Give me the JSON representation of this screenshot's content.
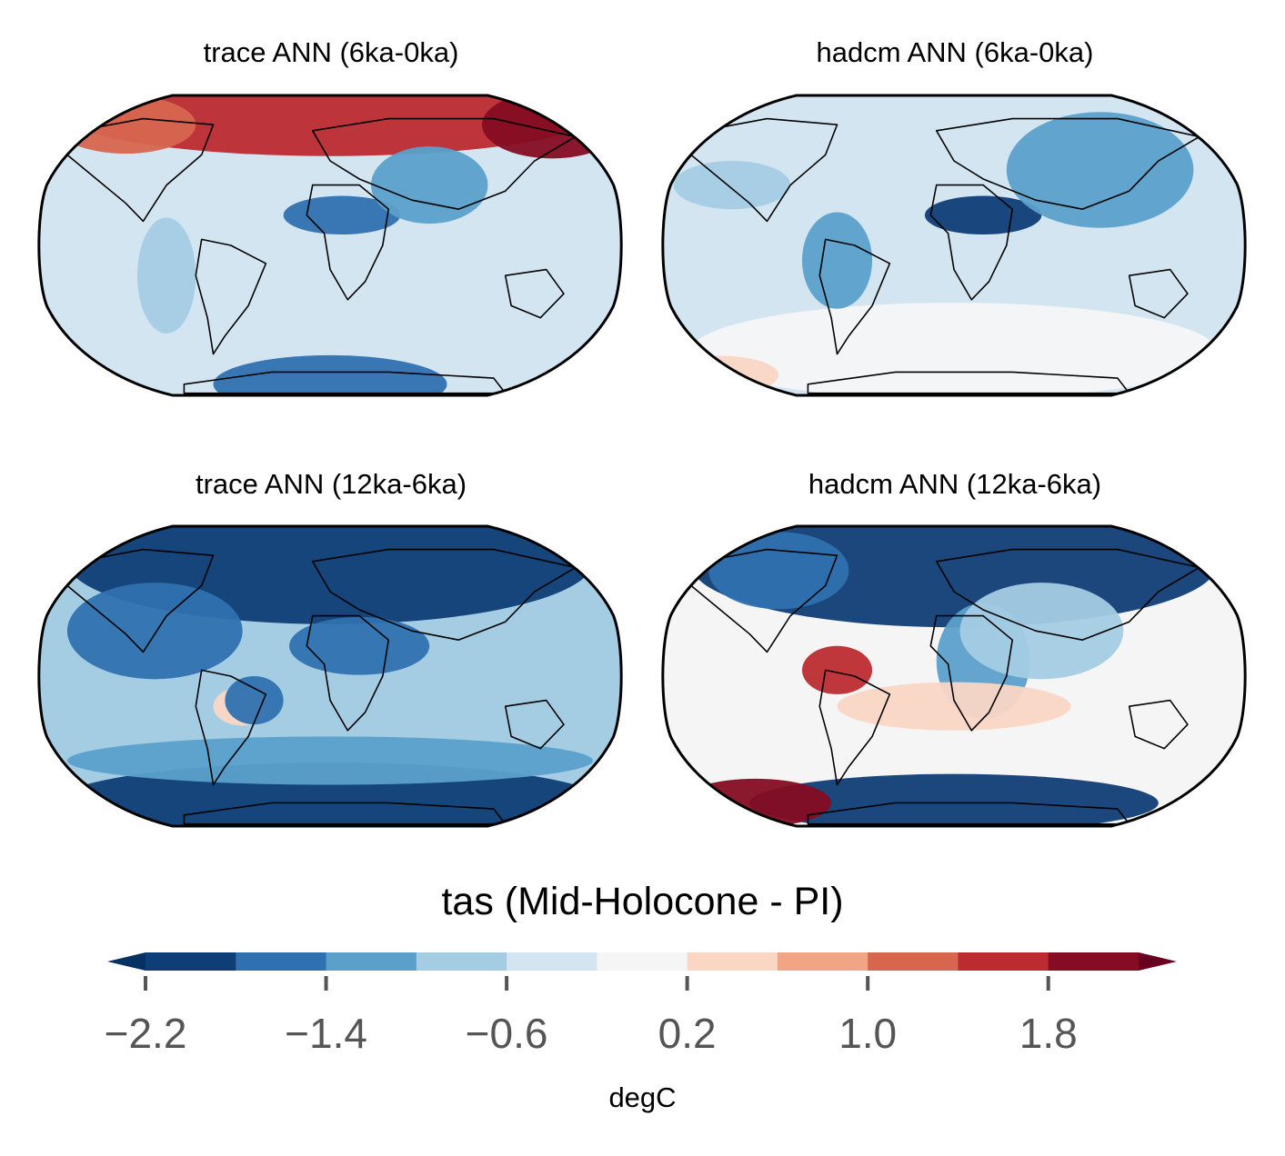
{
  "panels": [
    {
      "title": "trace ANN (6ka-0ka)"
    },
    {
      "title": "hadcm ANN (6ka-0ka)"
    },
    {
      "title": "trace ANN (12ka-6ka)"
    },
    {
      "title": "hadcm ANN (12ka-6ka)"
    }
  ],
  "colorbar": {
    "title": "tas (Mid-Holocone - PI)",
    "unit": "degC",
    "ticks": [
      "−2.2",
      "−1.4",
      "−0.6",
      "0.2",
      "1.0",
      "1.8"
    ],
    "levels": [
      -2.2,
      -1.8,
      -1.4,
      -1.0,
      -0.6,
      -0.2,
      0.2,
      0.6,
      1.0,
      1.4,
      1.8,
      2.2
    ],
    "colors": [
      "#0f3d75",
      "#2f71b0",
      "#5ba0cb",
      "#a4cce3",
      "#d3e5f1",
      "#f5f5f5",
      "#fad6c5",
      "#f2a585",
      "#d7664e",
      "#bc2b30",
      "#850d23"
    ],
    "extend_low": "#063263",
    "extend_high": "#68001f"
  }
}
